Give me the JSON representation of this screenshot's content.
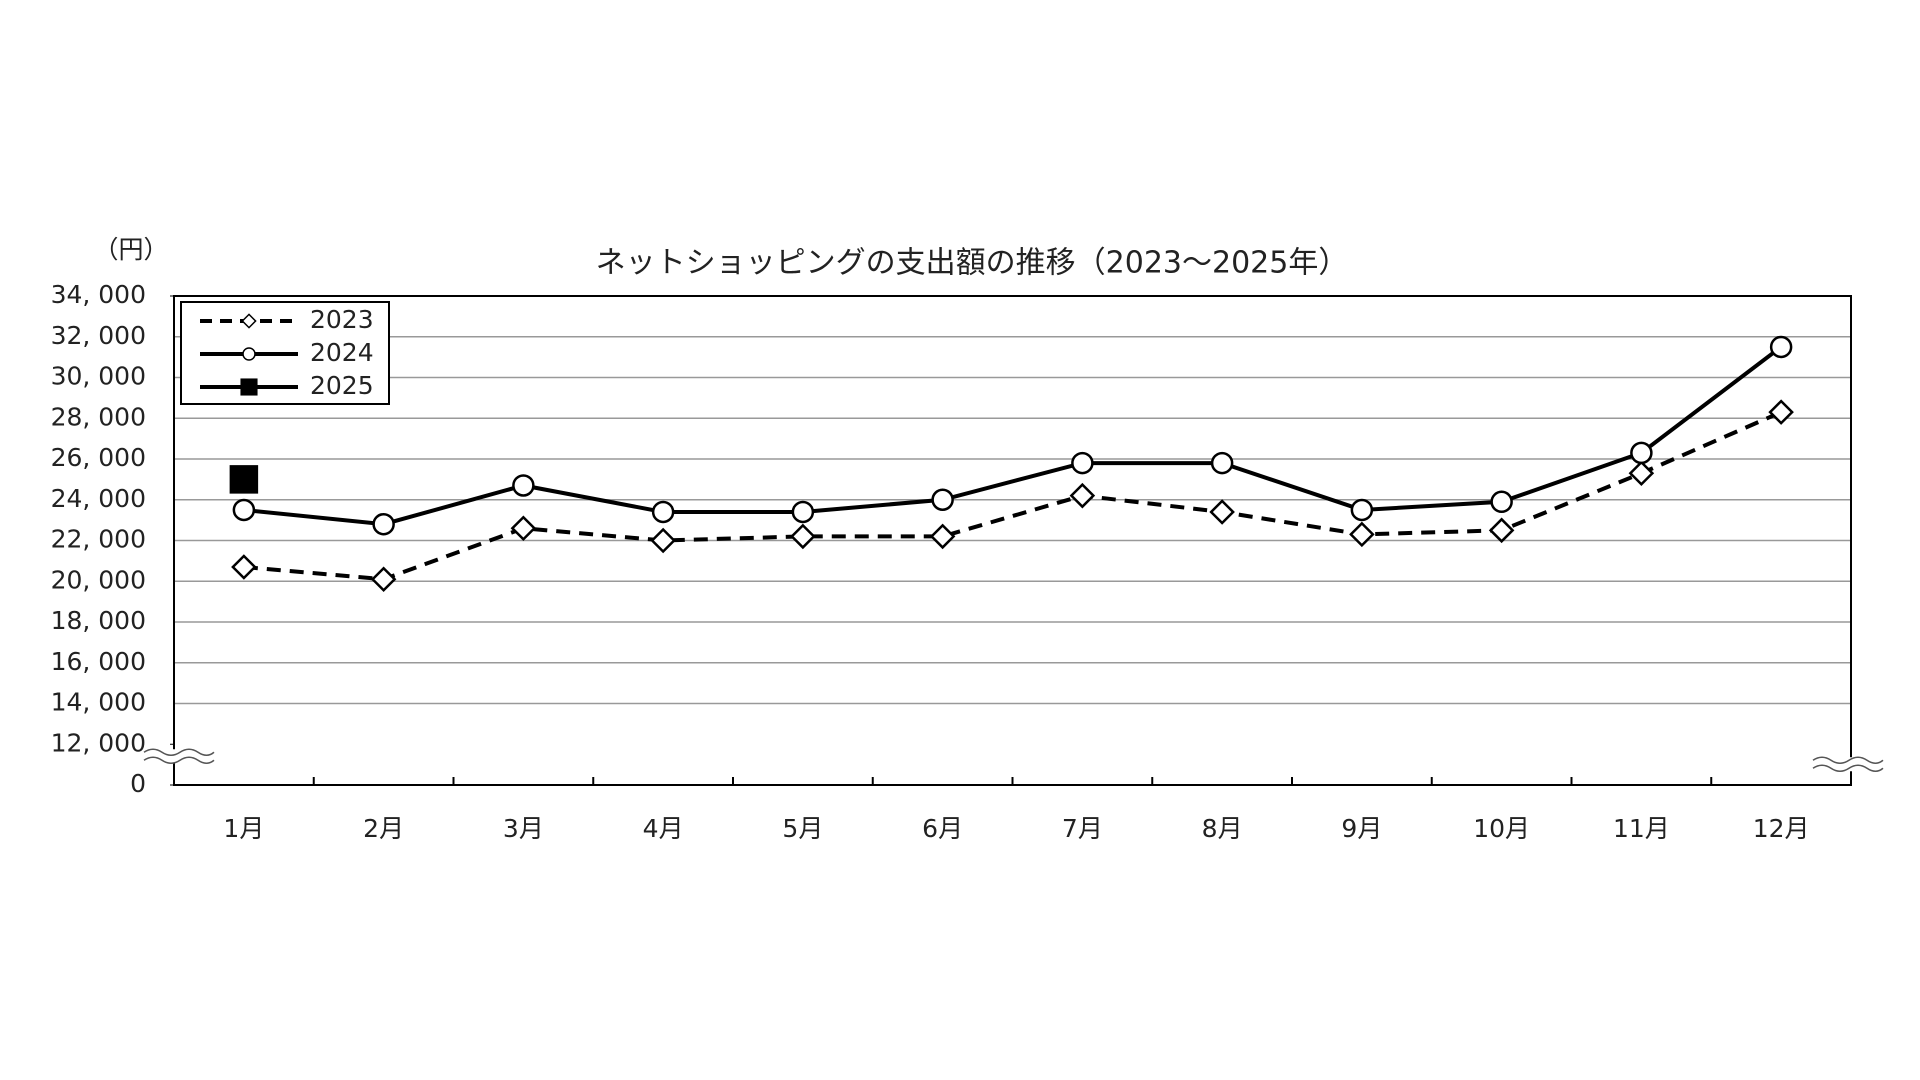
{
  "chart_data": {
    "type": "line",
    "title": "ネットショッピングの支出額の推移（2023～2025年）",
    "y_unit": "（円）",
    "categories": [
      "1月",
      "2月",
      "3月",
      "4月",
      "5月",
      "6月",
      "7月",
      "8月",
      "9月",
      "10月",
      "11月",
      "12月"
    ],
    "series": [
      {
        "name": "2023",
        "color": "#000000",
        "marker": "diamond",
        "dash": true,
        "values": [
          20700,
          20100,
          22600,
          22000,
          22200,
          22200,
          24200,
          23400,
          22300,
          22500,
          25300,
          28300
        ]
      },
      {
        "name": "2024",
        "color": "#000000",
        "marker": "circle",
        "dash": false,
        "values": [
          23500,
          22800,
          24700,
          23400,
          23400,
          24000,
          25800,
          25800,
          23500,
          23900,
          26300,
          31500
        ]
      },
      {
        "name": "2025",
        "color": "#000000",
        "marker": "square",
        "dash": false,
        "values": [
          25000,
          null,
          null,
          null,
          null,
          null,
          null,
          null,
          null,
          null,
          null,
          null
        ]
      }
    ],
    "ylim": [
      0,
      34000
    ],
    "y_break": [
      0,
      12000
    ],
    "yticks": [
      0,
      {
        "value": 12000,
        "label": "12, 000"
      },
      {
        "value": 14000,
        "label": "14, 000"
      },
      {
        "value": 16000,
        "label": "16, 000"
      },
      {
        "value": 18000,
        "label": "18, 000"
      },
      {
        "value": 20000,
        "label": "20, 000"
      },
      {
        "value": 22000,
        "label": "22, 000"
      },
      {
        "value": 24000,
        "label": "24, 000"
      },
      {
        "value": 26000,
        "label": "26, 000"
      },
      {
        "value": 28000,
        "label": "28, 000"
      },
      {
        "value": 30000,
        "label": "30, 000"
      },
      {
        "value": 32000,
        "label": "32, 000"
      },
      {
        "value": 34000,
        "label": "34, 000"
      }
    ],
    "grid": true,
    "legend": "top-left"
  }
}
